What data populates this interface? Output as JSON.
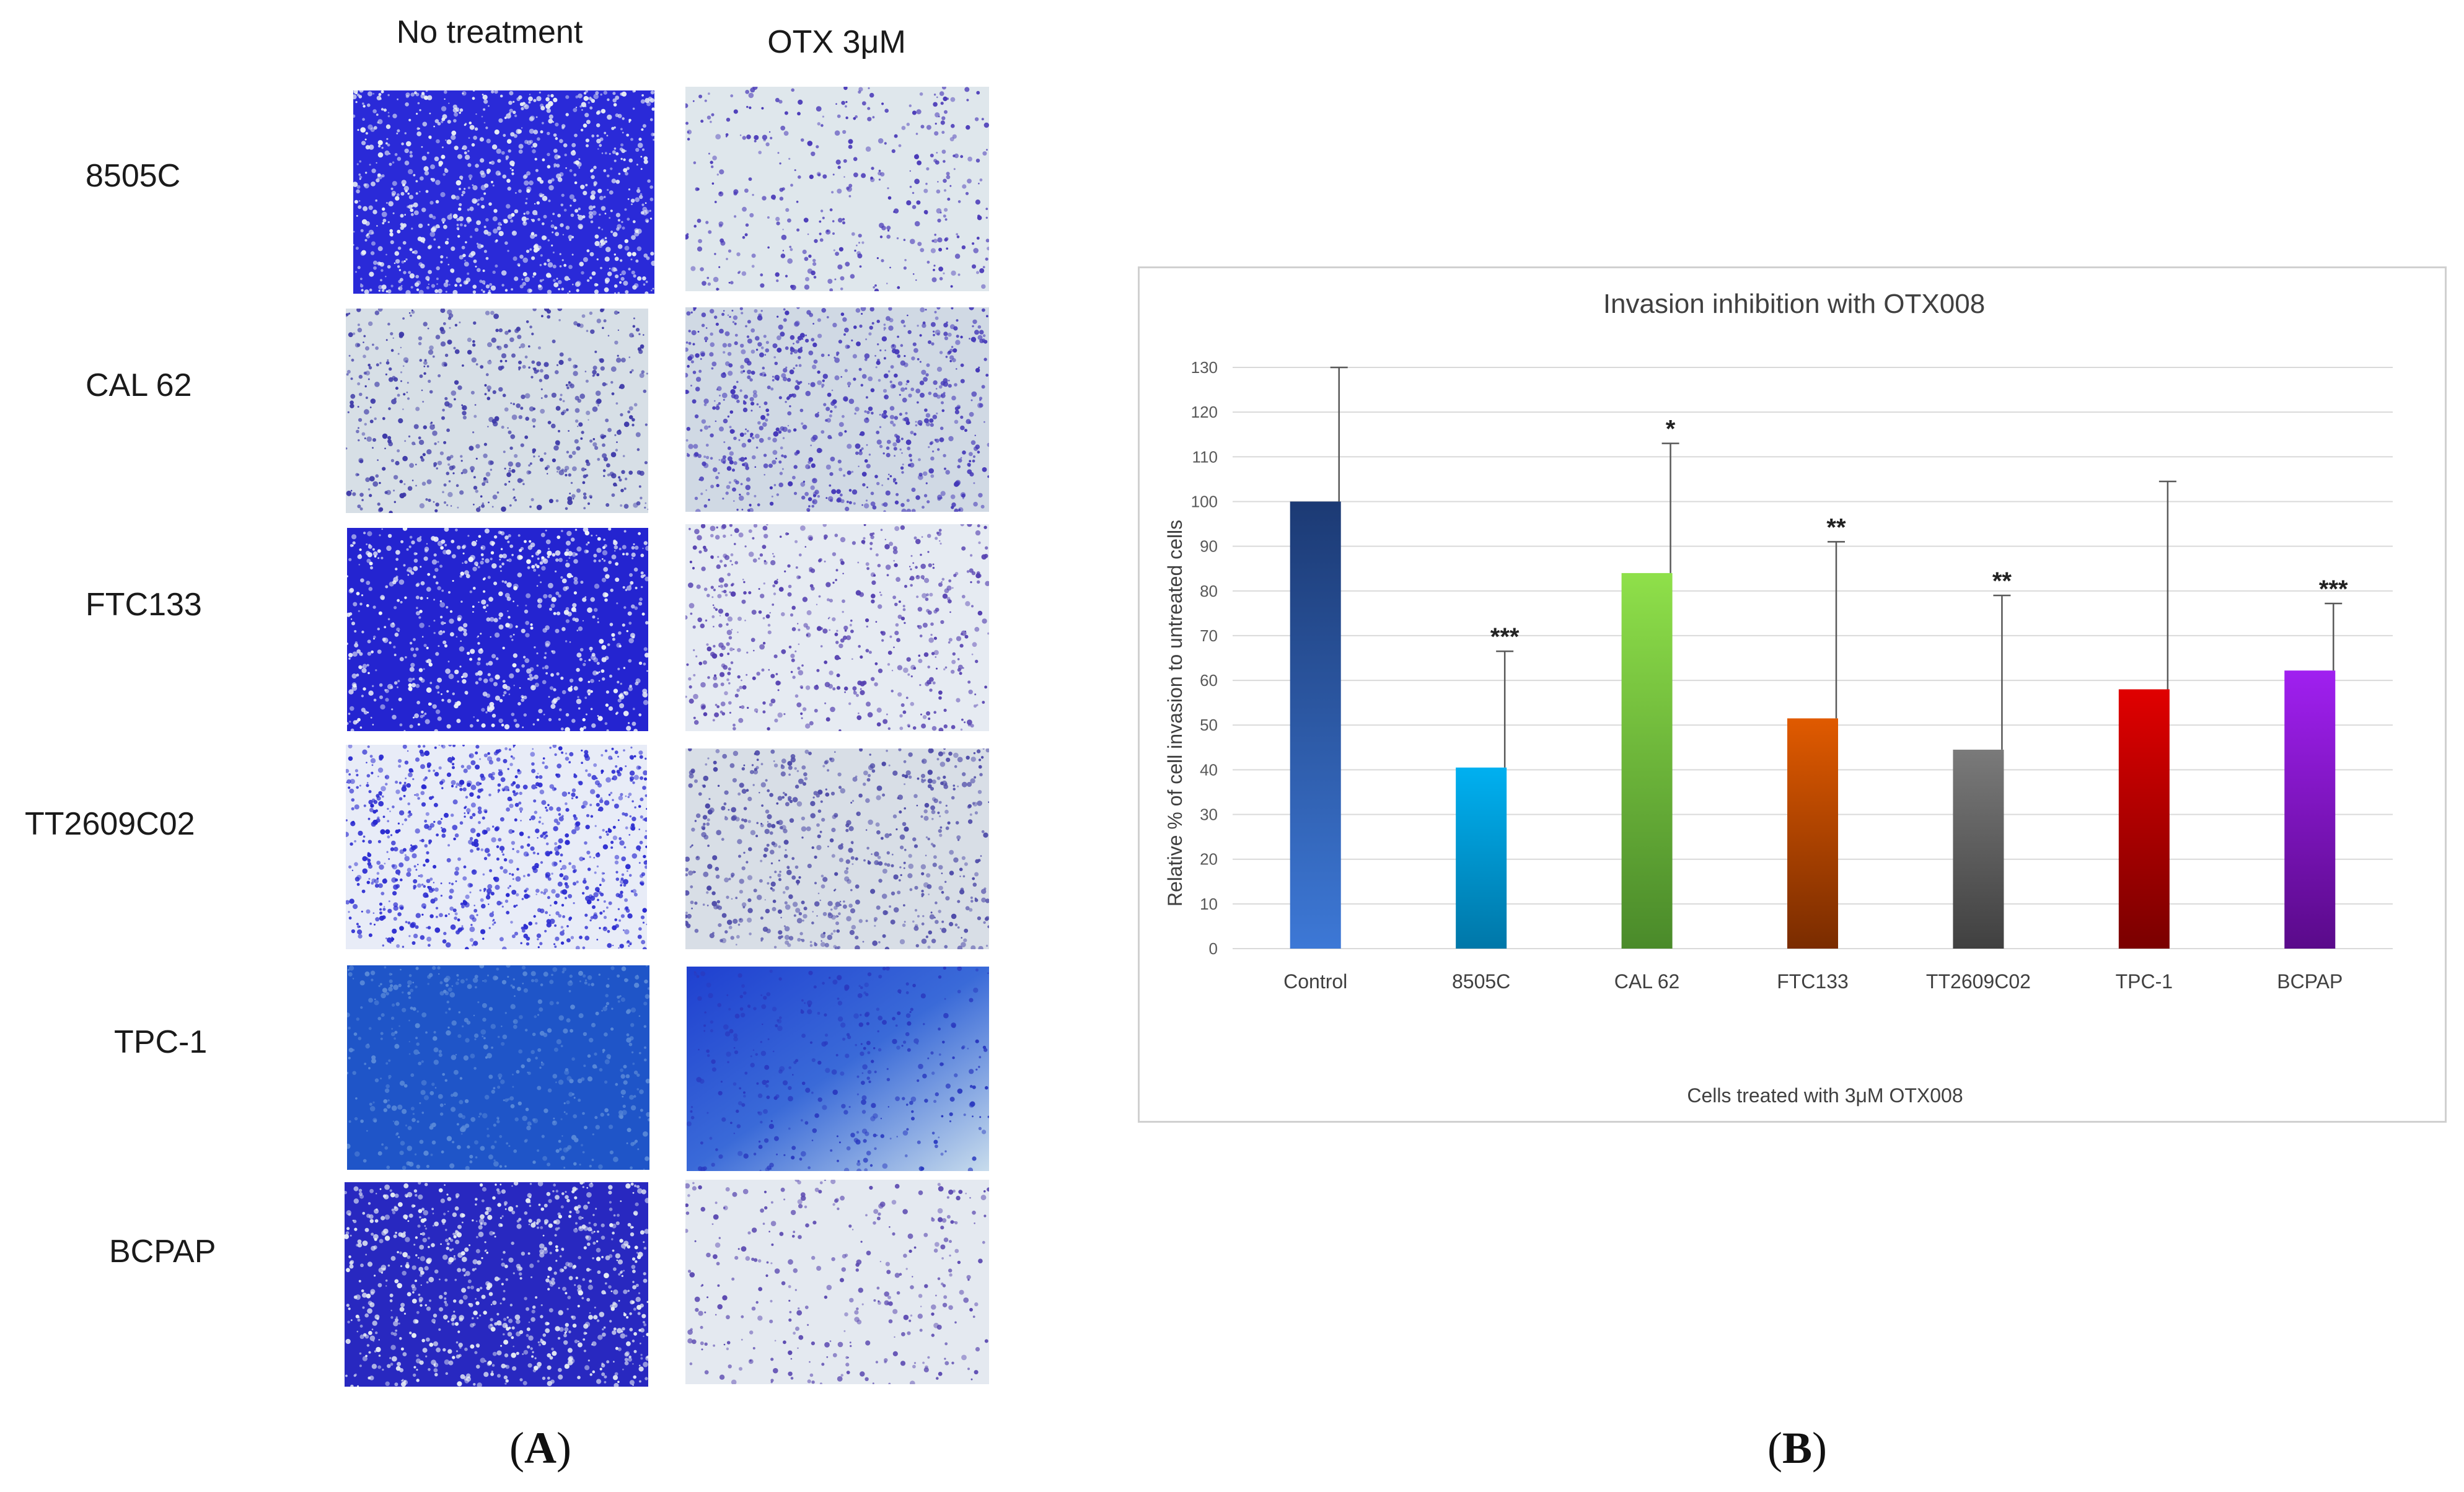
{
  "panel_a": {
    "headers": [
      "No treatment",
      "OTX 3μM"
    ],
    "rows": [
      "8505C",
      "CAL 62",
      "FTC133",
      "TT2609C02",
      "TPC-1",
      "BCPAP"
    ],
    "label_open": "(",
    "label_letter": "A",
    "label_close": ")"
  },
  "panel_b": {
    "label_open": "(",
    "label_letter": "B",
    "label_close": ")"
  },
  "chart_data": {
    "type": "bar",
    "title": "Invasion inhibition with OTX008",
    "xlabel": "Cells treated with 3μM OTX008",
    "ylabel": "Relative % of cell invasion to untreated cells",
    "ylim": [
      0,
      130
    ],
    "yticks": [
      0,
      10,
      20,
      30,
      40,
      50,
      60,
      70,
      80,
      90,
      100,
      110,
      120,
      130
    ],
    "grid": true,
    "categories": [
      "Control",
      "8505C",
      "CAL 62",
      "FTC133",
      "TT2609C02",
      "TPC-1",
      "BCPAP"
    ],
    "values": [
      100,
      40.5,
      84,
      51.5,
      44.5,
      58,
      62.2
    ],
    "error_upper": [
      130,
      66.5,
      113,
      91,
      79,
      104.5,
      77.2
    ],
    "significance": [
      "",
      "***",
      "*",
      "**",
      "**",
      "",
      "***"
    ],
    "colors": [
      {
        "top": "#1c3a74",
        "bottom": "#3d78d6"
      },
      {
        "top": "#00b0f0",
        "bottom": "#0077a8"
      },
      {
        "top": "#8fe04a",
        "bottom": "#4a8a2a"
      },
      {
        "top": "#e05a00",
        "bottom": "#7a2c00"
      },
      {
        "top": "#7a7a7a",
        "bottom": "#404040"
      },
      {
        "top": "#e00000",
        "bottom": "#7a0000"
      },
      {
        "top": "#a020f0",
        "bottom": "#5a0a8a"
      }
    ]
  }
}
